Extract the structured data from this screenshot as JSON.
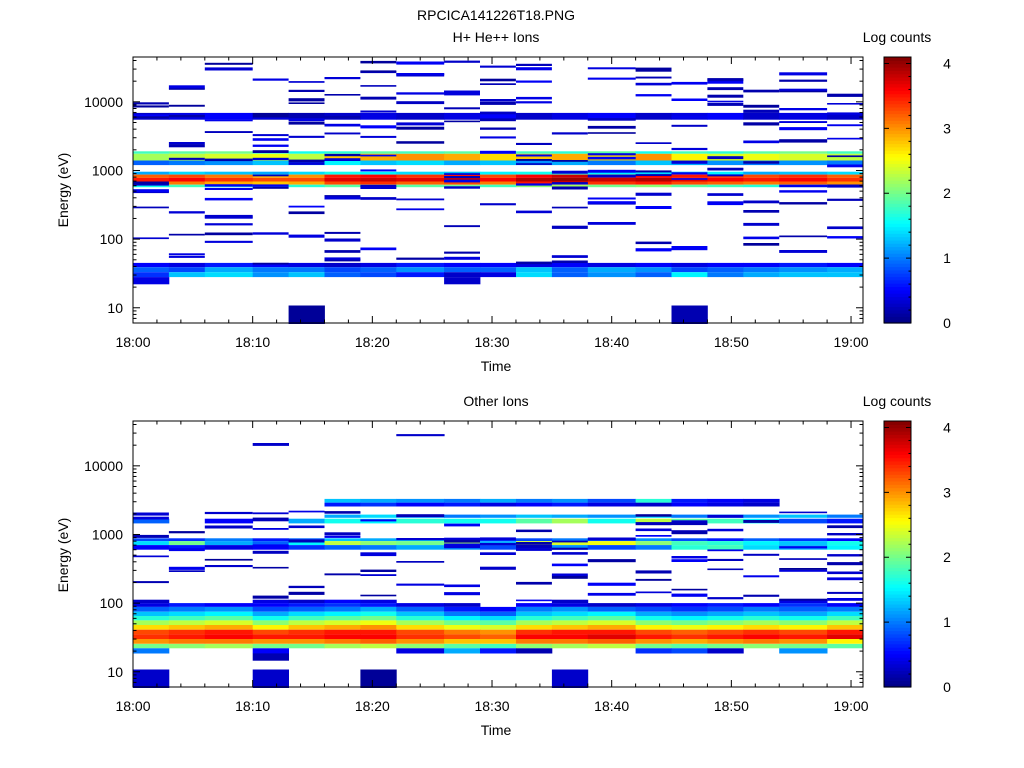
{
  "figure_title": "RPCICA141226T18.PNG",
  "chart_data": [
    {
      "type": "heatmap",
      "title": "H+ He++ Ions",
      "xlabel": "Time",
      "ylabel": "Energy (eV)",
      "colorbar_label": "Log counts",
      "x_range": [
        "18:00",
        "19:01"
      ],
      "xticks": [
        "18:00",
        "18:10",
        "18:20",
        "18:30",
        "18:40",
        "18:50",
        "19:00"
      ],
      "y_scale": "log",
      "y_range": [
        6,
        45000
      ],
      "yticks": [
        "10",
        "100",
        "1000",
        "10000"
      ],
      "colorbar_range": [
        0,
        4.1
      ],
      "colorbar_ticks": [
        "0",
        "1",
        "2",
        "3",
        "4"
      ],
      "time_bins": [
        "18:00",
        "18:03",
        "18:06",
        "18:10",
        "18:13",
        "18:16",
        "18:19",
        "18:22",
        "18:26",
        "18:29",
        "18:32",
        "18:35",
        "18:38",
        "18:42",
        "18:45",
        "18:48",
        "18:51",
        "18:54",
        "18:58"
      ],
      "bands": [
        {
          "e_lo": 5500,
          "e_hi": 6900,
          "values": [
            0.3,
            0.4,
            0.5,
            0.1,
            0.2,
            0.3,
            0.4,
            0.3,
            0.4,
            0.5,
            0.3,
            0.4,
            0.5,
            0.3,
            0.4,
            0.5,
            0.3,
            0.4,
            0.3
          ]
        },
        {
          "e_lo": 1750,
          "e_hi": 1900,
          "values": [
            1.8,
            1.9,
            2.0,
            1.8,
            1.6,
            1.7,
            1.9,
            1.8,
            1.9,
            2.0,
            1.8,
            1.7,
            1.9,
            1.6,
            1.8,
            1.7,
            1.9,
            2.0,
            1.8
          ]
        },
        {
          "e_lo": 1400,
          "e_hi": 1750,
          "values": [
            2.2,
            2.3,
            2.4,
            2.5,
            2.3,
            2.8,
            2.9,
            3.0,
            2.9,
            2.7,
            2.8,
            2.9,
            2.7,
            3.0,
            2.6,
            2.4,
            2.5,
            2.4,
            2.3
          ]
        },
        {
          "e_lo": 1200,
          "e_hi": 1400,
          "values": [
            0.9,
            1.0,
            1.1,
            1.3,
            1.2,
            1.5,
            1.3,
            1.4,
            1.2,
            1.3,
            1.1,
            1.2,
            1.0,
            1.3,
            1.2,
            1.1,
            1.0,
            1.1,
            1.0
          ]
        },
        {
          "e_lo": 870,
          "e_hi": 960,
          "values": [
            1.2,
            1.4,
            1.3,
            1.2,
            1.4,
            1.6,
            1.5,
            1.4,
            1.3,
            1.5,
            1.6,
            1.7,
            1.5,
            1.4,
            1.3,
            1.5,
            1.2,
            1.3,
            1.4
          ]
        },
        {
          "e_lo": 780,
          "e_hi": 870,
          "values": [
            3.2,
            3.3,
            3.1,
            2.9,
            3.0,
            3.5,
            3.6,
            3.4,
            3.5,
            3.3,
            3.6,
            3.8,
            3.7,
            3.6,
            3.5,
            3.4,
            3.3,
            3.4,
            3.2
          ]
        },
        {
          "e_lo": 690,
          "e_hi": 780,
          "values": [
            3.5,
            3.6,
            3.4,
            3.3,
            3.3,
            3.7,
            3.8,
            3.7,
            3.8,
            3.6,
            3.9,
            4.0,
            3.8,
            3.9,
            3.7,
            3.6,
            3.5,
            3.6,
            3.4
          ]
        },
        {
          "e_lo": 620,
          "e_hi": 690,
          "values": [
            3.0,
            3.1,
            2.9,
            2.8,
            2.9,
            3.3,
            3.4,
            3.2,
            3.3,
            3.1,
            3.5,
            3.6,
            3.4,
            3.5,
            3.3,
            3.2,
            3.1,
            3.2,
            3.0
          ]
        },
        {
          "e_lo": 570,
          "e_hi": 620,
          "values": [
            1.6,
            1.8,
            1.6,
            1.5,
            1.7,
            1.9,
            2.0,
            1.9,
            2.0,
            1.8,
            2.1,
            2.2,
            2.0,
            2.1,
            1.9,
            1.8,
            1.7,
            1.8,
            1.6
          ]
        },
        {
          "e_lo": 39,
          "e_hi": 45,
          "values": [
            0.5,
            0.4,
            0.6,
            0.5,
            0.4,
            0.3,
            0.4,
            0.6,
            0.5,
            0.5,
            0.4,
            0.5,
            0.4,
            0.5,
            0.4,
            0.5,
            0.5,
            0.6,
            0.5
          ]
        },
        {
          "e_lo": 33,
          "e_hi": 39,
          "values": [
            0.9,
            0.8,
            1.2,
            1.0,
            1.0,
            0.8,
            0.9,
            1.1,
            0.9,
            0.9,
            1.3,
            0.9,
            1.2,
            1.1,
            0.8,
            0.9,
            1.0,
            1.1,
            1.2
          ]
        },
        {
          "e_lo": 28,
          "e_hi": 33,
          "values": [
            0.7,
            1.3,
            1.4,
            1.1,
            1.3,
            0.9,
            0.8,
            0.6,
            0.3,
            0.4,
            1.4,
            0.9,
            1.1,
            0.9,
            1.5,
            1.0,
            1.2,
            1.3,
            1.3
          ]
        },
        {
          "e_lo": 22,
          "e_hi": 28,
          "values": [
            0.4,
            null,
            null,
            null,
            null,
            null,
            null,
            null,
            0.3,
            null,
            null,
            null,
            null,
            null,
            null,
            null,
            null,
            null,
            null
          ]
        },
        {
          "e_lo": 5.8,
          "e_hi": 10.8,
          "values": [
            null,
            null,
            null,
            null,
            0.1,
            null,
            null,
            null,
            null,
            null,
            null,
            null,
            null,
            null,
            0.2,
            null,
            null,
            null,
            null
          ]
        }
      ],
      "sparse_lines": {
        "energy_min": 45,
        "energy_max": 42000,
        "level_min": 0.1,
        "level_max": 0.5,
        "per_bin": 12,
        "seed": 11
      }
    },
    {
      "type": "heatmap",
      "title": "Other Ions",
      "xlabel": "Time",
      "ylabel": "Energy (eV)",
      "colorbar_label": "Log counts",
      "x_range": [
        "18:00",
        "19:01"
      ],
      "xticks": [
        "18:00",
        "18:10",
        "18:20",
        "18:30",
        "18:40",
        "18:50",
        "19:00"
      ],
      "y_scale": "log",
      "y_range": [
        6,
        45000
      ],
      "yticks": [
        "10",
        "100",
        "1000",
        "10000"
      ],
      "colorbar_range": [
        0,
        4.1
      ],
      "colorbar_ticks": [
        "0",
        "1",
        "2",
        "3",
        "4"
      ],
      "time_bins": [
        "18:00",
        "18:03",
        "18:06",
        "18:10",
        "18:13",
        "18:16",
        "18:19",
        "18:22",
        "18:26",
        "18:29",
        "18:32",
        "18:35",
        "18:38",
        "18:42",
        "18:45",
        "18:48",
        "18:51",
        "18:54",
        "18:58"
      ],
      "bands": [
        {
          "e_lo": 19500,
          "e_hi": 21500,
          "values": [
            null,
            null,
            null,
            0.3,
            null,
            null,
            null,
            null,
            null,
            null,
            null,
            null,
            null,
            null,
            null,
            null,
            null,
            null,
            null
          ]
        },
        {
          "e_lo": 27000,
          "e_hi": 29000,
          "values": [
            null,
            null,
            null,
            null,
            null,
            null,
            null,
            0.3,
            null,
            null,
            null,
            null,
            null,
            null,
            null,
            null,
            null,
            null,
            null
          ]
        },
        {
          "e_lo": 2900,
          "e_hi": 3300,
          "values": [
            null,
            null,
            null,
            null,
            null,
            1.3,
            1.2,
            1.1,
            1.0,
            1.2,
            1.0,
            1.1,
            0.8,
            1.7,
            0.6,
            0.5,
            0.4,
            null,
            null
          ]
        },
        {
          "e_lo": 2550,
          "e_hi": 2900,
          "values": [
            null,
            null,
            null,
            null,
            null,
            0.6,
            0.7,
            0.5,
            0.6,
            0.4,
            0.5,
            0.6,
            0.4,
            0.3,
            0.5,
            0.4,
            0.3,
            null,
            null
          ]
        },
        {
          "e_lo": 1750,
          "e_hi": 1950,
          "values": [
            null,
            null,
            null,
            null,
            null,
            1.2,
            1.4,
            1.1,
            1.0,
            1.1,
            1.3,
            1.2,
            1.1,
            1.4,
            1.0,
            1.2,
            1.1,
            1.3,
            1.0
          ]
        },
        {
          "e_lo": 1450,
          "e_hi": 1700,
          "values": [
            0.9,
            null,
            0.5,
            null,
            1.2,
            1.6,
            1.5,
            1.7,
            1.6,
            1.6,
            1.9,
            2.2,
            1.6,
            2.3,
            1.9,
            1.8,
            1.5,
            0.8,
            0.6
          ]
        },
        {
          "e_lo": 800,
          "e_hi": 880,
          "values": [
            0.8,
            0.7,
            1.0,
            0.6,
            0.9,
            1.3,
            1.2,
            1.4,
            1.3,
            0.7,
            0.8,
            1.0,
            0.9,
            1.1,
            0.8,
            0.6,
            0.9,
            0.7,
            0.5
          ]
        },
        {
          "e_lo": 700,
          "e_hi": 800,
          "values": [
            1.4,
            2.0,
            1.2,
            0.9,
            1.5,
            2.3,
            2.1,
            2.0,
            2.2,
            1.2,
            2.4,
            2.4,
            2.5,
            2.1,
            1.8,
            1.7,
            1.5,
            1.3,
            1.6
          ]
        },
        {
          "e_lo": 600,
          "e_hi": 700,
          "values": [
            0.5,
            0.6,
            0.4,
            0.5,
            0.7,
            0.9,
            1.0,
            1.2,
            1.1,
            0.8,
            0.9,
            1.1,
            0.8,
            1.0,
            1.7,
            1.8,
            1.4,
            1.2,
            1.5
          ]
        },
        {
          "e_lo": 100,
          "e_hi": 112,
          "values": [
            0.3,
            null,
            null,
            0.4,
            0.3,
            0.5,
            0.4,
            null,
            null,
            null,
            null,
            0.3,
            null,
            null,
            null,
            null,
            null,
            0.4,
            null
          ]
        },
        {
          "e_lo": 88,
          "e_hi": 100,
          "values": [
            0.4,
            0.6,
            0.5,
            0.5,
            0.6,
            0.7,
            0.6,
            0.4,
            0.3,
            null,
            0.5,
            0.4,
            0.3,
            0.4,
            0.5,
            0.6,
            0.5,
            0.7,
            0.5
          ]
        },
        {
          "e_lo": 75,
          "e_hi": 88,
          "values": [
            0.9,
            1.0,
            1.1,
            0.8,
            0.9,
            1.0,
            1.2,
            0.9,
            0.6,
            0.5,
            1.0,
            1.1,
            0.9,
            0.8,
            0.7,
            0.8,
            1.0,
            0.9,
            1.0
          ]
        },
        {
          "e_lo": 65,
          "e_hi": 75,
          "values": [
            1.3,
            1.4,
            1.5,
            1.2,
            1.4,
            1.5,
            1.6,
            1.3,
            1.0,
            0.9,
            1.3,
            1.4,
            1.5,
            1.2,
            1.1,
            1.2,
            1.3,
            1.2,
            1.4
          ]
        },
        {
          "e_lo": 56,
          "e_hi": 65,
          "values": [
            1.7,
            1.8,
            1.9,
            1.6,
            1.8,
            1.9,
            2.0,
            1.7,
            1.5,
            1.4,
            1.7,
            1.8,
            1.9,
            1.6,
            1.5,
            1.6,
            1.7,
            1.6,
            1.8
          ]
        },
        {
          "e_lo": 48,
          "e_hi": 56,
          "values": [
            2.2,
            2.3,
            2.4,
            2.1,
            2.3,
            2.4,
            2.5,
            2.2,
            2.0,
            1.9,
            2.2,
            2.3,
            2.4,
            2.1,
            2.0,
            2.1,
            2.2,
            2.1,
            2.3
          ]
        },
        {
          "e_lo": 41,
          "e_hi": 48,
          "values": [
            2.7,
            2.8,
            2.9,
            2.6,
            2.8,
            2.9,
            3.0,
            2.7,
            2.5,
            2.4,
            2.7,
            2.8,
            2.9,
            2.6,
            2.5,
            2.6,
            2.7,
            2.6,
            2.8
          ]
        },
        {
          "e_lo": 35,
          "e_hi": 41,
          "values": [
            3.3,
            3.4,
            3.5,
            3.3,
            3.4,
            3.5,
            3.5,
            3.3,
            3.1,
            3.0,
            3.4,
            3.5,
            3.5,
            3.3,
            3.2,
            3.3,
            3.4,
            3.3,
            3.5
          ]
        },
        {
          "e_lo": 30,
          "e_hi": 35,
          "values": [
            3.4,
            3.5,
            3.6,
            3.5,
            3.5,
            3.6,
            3.6,
            3.4,
            3.3,
            3.2,
            3.6,
            3.6,
            3.7,
            3.5,
            3.4,
            3.5,
            3.6,
            3.5,
            3.7
          ]
        },
        {
          "e_lo": 25.5,
          "e_hi": 30,
          "values": [
            3.0,
            3.1,
            3.1,
            3.0,
            3.0,
            3.1,
            3.2,
            3.0,
            2.8,
            2.8,
            3.1,
            3.1,
            3.2,
            3.0,
            2.9,
            3.0,
            3.1,
            3.0,
            2.6
          ]
        },
        {
          "e_lo": 22,
          "e_hi": 25.5,
          "values": [
            2.0,
            2.1,
            2.2,
            2.0,
            2.0,
            2.2,
            2.3,
            2.1,
            1.9,
            1.8,
            2.1,
            2.2,
            2.3,
            2.0,
            1.9,
            2.0,
            2.1,
            2.0,
            1.9
          ]
        },
        {
          "e_lo": 18.5,
          "e_hi": 22,
          "values": [
            1.0,
            null,
            null,
            0.5,
            null,
            null,
            null,
            0.4,
            1.2,
            0.6,
            0.2,
            null,
            null,
            0.7,
            0.8,
            0.3,
            null,
            1.1,
            null
          ]
        },
        {
          "e_lo": 14.5,
          "e_hi": 18.5,
          "values": [
            null,
            null,
            null,
            0.2,
            null,
            null,
            null,
            null,
            null,
            null,
            null,
            null,
            null,
            null,
            null,
            null,
            null,
            null,
            null
          ]
        },
        {
          "e_lo": 5.8,
          "e_hi": 10.8,
          "values": [
            0.3,
            null,
            null,
            0.3,
            null,
            null,
            0.1,
            null,
            null,
            null,
            null,
            0.3,
            null,
            null,
            null,
            null,
            null,
            null,
            null
          ]
        }
      ],
      "sparse_lines": {
        "energy_min": 110,
        "energy_max": 2400,
        "level_min": 0.1,
        "level_max": 0.5,
        "per_bin": 6,
        "seed": 29
      }
    }
  ]
}
